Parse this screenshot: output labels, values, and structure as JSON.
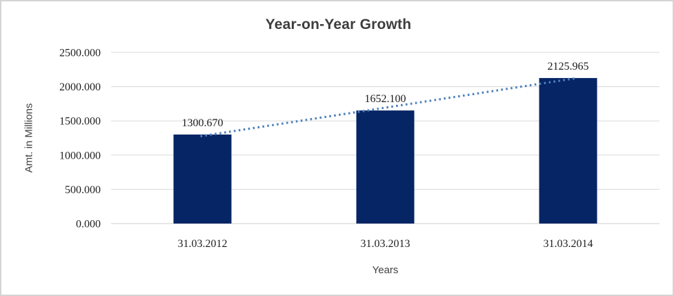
{
  "frame": {
    "background": "#ffffff",
    "border_color": "#d4d4d4"
  },
  "chart_data": {
    "type": "bar",
    "title": "Year-on-Year Growth",
    "xlabel": "Years",
    "ylabel": "Amt. in Millions",
    "categories": [
      "31.03.2012",
      "31.03.2013",
      "31.03.2014"
    ],
    "values": [
      1300.67,
      1652.1,
      2125.965
    ],
    "data_labels": [
      "1300.670",
      "1652.100",
      "2125.965"
    ],
    "y_ticks": [
      {
        "value": 0,
        "label": "0.000"
      },
      {
        "value": 500,
        "label": "500.000"
      },
      {
        "value": 1000,
        "label": "1000.000"
      },
      {
        "value": 1500,
        "label": "1500.000"
      },
      {
        "value": 2000,
        "label": "2000.000"
      },
      {
        "value": 2500,
        "label": "2500.000"
      }
    ],
    "ylim": [
      0,
      2500
    ],
    "grid": true,
    "legend": false,
    "trendline": {
      "type": "linear",
      "style": "dotted"
    },
    "colors": {
      "bar": "#062565",
      "trendline": "#4f81bd",
      "gridline": "#d9d9d9",
      "axis_line": "#cfcfcf",
      "tick_text": "#1f1f1f",
      "title_text": "#3d3d3d",
      "axis_title_text": "#404040"
    }
  }
}
